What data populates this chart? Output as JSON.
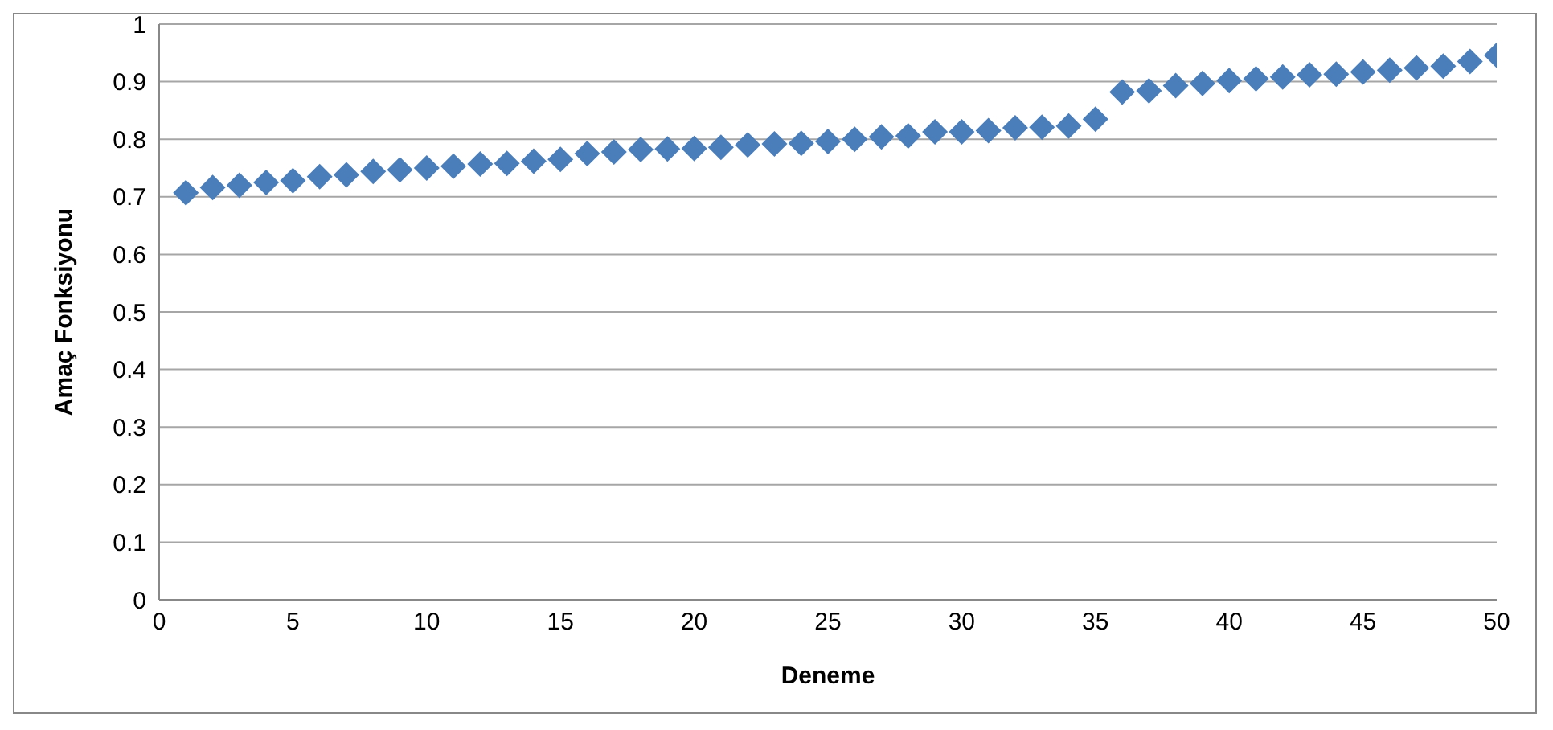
{
  "chart_data": {
    "type": "scatter",
    "xlabel": "Deneme",
    "ylabel": "Amaç Fonksiyonu",
    "x": [
      1,
      2,
      3,
      4,
      5,
      6,
      7,
      8,
      9,
      10,
      11,
      12,
      13,
      14,
      15,
      16,
      17,
      18,
      19,
      20,
      21,
      22,
      23,
      24,
      25,
      26,
      27,
      28,
      29,
      30,
      31,
      32,
      33,
      34,
      35,
      36,
      37,
      38,
      39,
      40,
      41,
      42,
      43,
      44,
      45,
      46,
      47,
      48,
      49,
      50
    ],
    "series": [
      {
        "color": "#4a7ebb",
        "values": [
          0.707,
          0.716,
          0.72,
          0.725,
          0.728,
          0.735,
          0.738,
          0.744,
          0.747,
          0.75,
          0.753,
          0.757,
          0.758,
          0.762,
          0.765,
          0.775,
          0.778,
          0.782,
          0.783,
          0.784,
          0.786,
          0.79,
          0.792,
          0.793,
          0.796,
          0.8,
          0.804,
          0.806,
          0.813,
          0.813,
          0.815,
          0.82,
          0.821,
          0.823,
          0.835,
          0.882,
          0.884,
          0.893,
          0.897,
          0.902,
          0.905,
          0.908,
          0.912,
          0.913,
          0.917,
          0.92,
          0.924,
          0.927,
          0.935,
          0.946
        ]
      }
    ],
    "xlim": [
      0,
      50
    ],
    "xticks": [
      0,
      5,
      10,
      15,
      20,
      25,
      30,
      35,
      40,
      45,
      50
    ],
    "ylim": [
      0,
      1
    ],
    "yticks": [
      0,
      0.1,
      0.2,
      0.3,
      0.4,
      0.5,
      0.6,
      0.7,
      0.8,
      0.9,
      1
    ],
    "grid": "y",
    "marker": "diamond",
    "legend": false
  }
}
